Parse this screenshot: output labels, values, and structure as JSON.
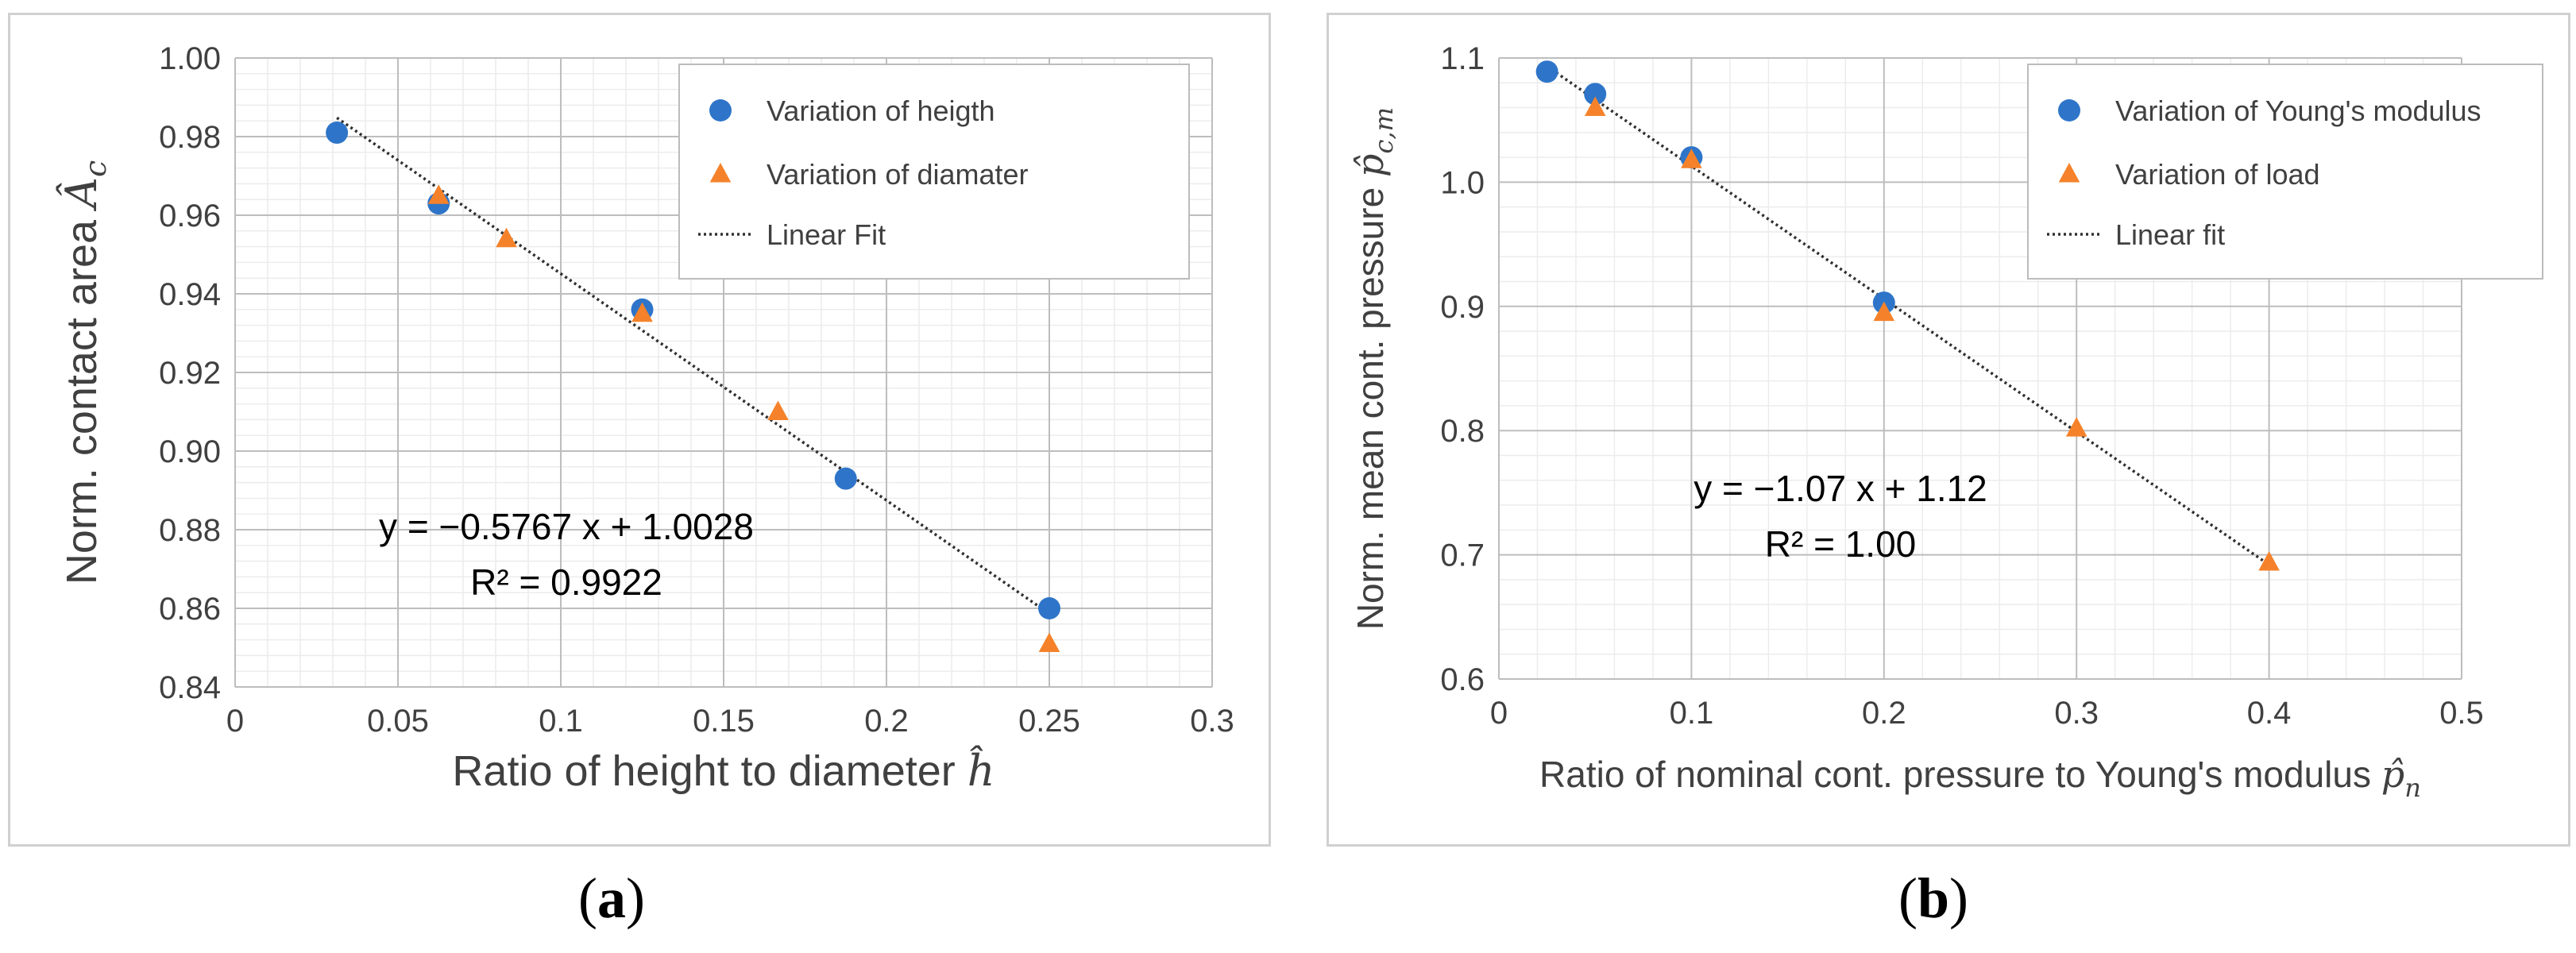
{
  "chart_data": [
    {
      "type": "scatter",
      "panel": "a",
      "xlabel": "Ratio of height to diameter",
      "xlabel_symbol": "ĥ",
      "ylabel": "Norm. contact area",
      "ylabel_symbol": "Â",
      "ylabel_subscript": "c",
      "xlim": [
        0,
        0.3
      ],
      "ylim": [
        0.84,
        1.0
      ],
      "xticks": [
        0,
        0.05,
        0.1,
        0.15,
        0.2,
        0.25,
        0.3
      ],
      "xtick_labels": [
        "0",
        "0.05",
        "0.1",
        "0.15",
        "0.2",
        "0.25",
        "0.3"
      ],
      "yticks": [
        0.84,
        0.86,
        0.88,
        0.9,
        0.92,
        0.94,
        0.96,
        0.98,
        1.0
      ],
      "ytick_labels": [
        "0.84",
        "0.86",
        "0.88",
        "0.90",
        "0.92",
        "0.94",
        "0.96",
        "0.98",
        "1.00"
      ],
      "grid": true,
      "legend_position": "top-right",
      "series": [
        {
          "name": "Variation of heigth",
          "marker": "circle",
          "color": "#2e75c9",
          "x": [
            0.03125,
            0.0625,
            0.125,
            0.1875,
            0.25
          ],
          "y": [
            0.981,
            0.963,
            0.936,
            0.893,
            0.86
          ]
        },
        {
          "name": "Variation of diamater",
          "marker": "triangle",
          "color": "#f5822a",
          "x": [
            0.0625,
            0.0833,
            0.125,
            0.1667,
            0.25
          ],
          "y": [
            0.965,
            0.954,
            0.935,
            0.91,
            0.851
          ]
        }
      ],
      "fit": {
        "name": "Linear Fit",
        "slope": -0.5767,
        "intercept": 1.0028,
        "x_range": [
          0.03125,
          0.25
        ]
      },
      "annotation": [
        "y = −0.5767 x + 1.0028",
        "R² = 0.9922"
      ]
    },
    {
      "type": "scatter",
      "panel": "b",
      "xlabel": "Ratio of nominal cont. pressure to Young's modulus",
      "xlabel_symbol": "p̂",
      "xlabel_subscript": "n",
      "ylabel": "Norm. mean cont. pressure",
      "ylabel_symbol": "p̂",
      "ylabel_subscript": "c,m",
      "xlim": [
        0,
        0.5
      ],
      "ylim": [
        0.6,
        1.1
      ],
      "xticks": [
        0,
        0.1,
        0.2,
        0.3,
        0.4,
        0.5
      ],
      "xtick_labels": [
        "0",
        "0.1",
        "0.2",
        "0.3",
        "0.4",
        "0.5"
      ],
      "yticks": [
        0.6,
        0.7,
        0.8,
        0.9,
        1.0,
        1.1
      ],
      "ytick_labels": [
        "0.6",
        "0.7",
        "0.8",
        "0.9",
        "1.0",
        "1.1"
      ],
      "grid": true,
      "legend_position": "top-right",
      "series": [
        {
          "name": "Variation of Young's modulus",
          "marker": "circle",
          "color": "#2e75c9",
          "x": [
            0.025,
            0.05,
            0.1,
            0.2
          ],
          "y": [
            1.089,
            1.071,
            1.02,
            0.903
          ]
        },
        {
          "name": "Variation of load",
          "marker": "triangle",
          "color": "#f5822a",
          "x": [
            0.05,
            0.1,
            0.2,
            0.3,
            0.4
          ],
          "y": [
            1.06,
            1.018,
            0.895,
            0.802,
            0.694
          ]
        }
      ],
      "fit": {
        "name": "Linear fit",
        "slope": -1.07,
        "intercept": 1.12,
        "x_range": [
          0.025,
          0.4
        ]
      },
      "annotation": [
        "y = −1.07 x + 1.12",
        "R² = 1.00"
      ]
    }
  ],
  "captions": {
    "a": "a",
    "b": "b"
  }
}
